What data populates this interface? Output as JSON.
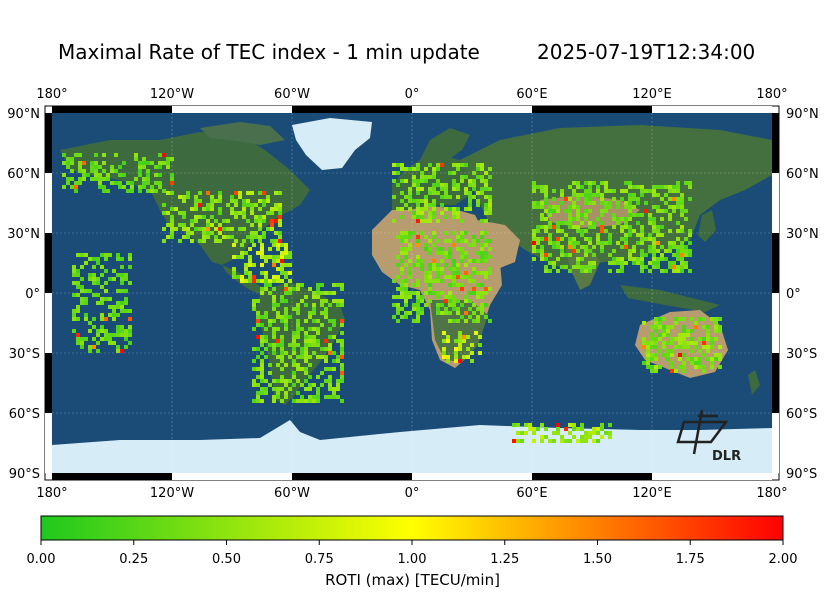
{
  "title": "Maximal Rate of TEC index - 1 min update",
  "timestamp": "2025-07-19T12:34:00",
  "logo_text": "DLR",
  "colors": {
    "ocean": "#1b4c78",
    "land": "#3d6a3f",
    "desert": "#b79c6f",
    "ice": "#d6ecf7"
  },
  "axes": {
    "lon_ticks_top": [
      "180°",
      "120°W",
      "60°W",
      "0°",
      "60°E",
      "120°E",
      "180°"
    ],
    "lon_ticks_bottom": [
      "180°",
      "120°W",
      "60°W",
      "0°",
      "60°E",
      "120°E",
      "180°"
    ],
    "lat_ticks_left": [
      "90°N",
      "60°N",
      "30°N",
      "0°",
      "30°S",
      "60°S",
      "90°S"
    ],
    "lat_ticks_right": [
      "90°N",
      "60°N",
      "30°N",
      "0°",
      "30°S",
      "60°S",
      "90°S"
    ]
  },
  "colorbar": {
    "label": "ROTI (max) [TECU/min]",
    "ticks": [
      "0.00",
      "0.25",
      "0.50",
      "0.75",
      "1.00",
      "1.25",
      "1.50",
      "1.75",
      "2.00"
    ],
    "range": [
      0,
      2
    ],
    "colors": [
      "#1ec81e",
      "#ffff00",
      "#ff0000"
    ]
  },
  "data_clusters": [
    {
      "region": "alaska-canada",
      "lon": [
        -175,
        -120
      ],
      "lat": [
        50,
        70
      ],
      "typ": 0.4
    },
    {
      "region": "north-america",
      "lon": [
        -125,
        -65
      ],
      "lat": [
        25,
        50
      ],
      "typ": 0.55
    },
    {
      "region": "central-america",
      "lon": [
        -90,
        -60
      ],
      "lat": [
        5,
        25
      ],
      "typ": 0.7
    },
    {
      "region": "south-america",
      "lon": [
        -80,
        -35
      ],
      "lat": [
        -55,
        5
      ],
      "typ": 0.45
    },
    {
      "region": "europe",
      "lon": [
        -10,
        40
      ],
      "lat": [
        35,
        65
      ],
      "typ": 0.5
    },
    {
      "region": "africa",
      "lon": [
        -10,
        40
      ],
      "lat": [
        -15,
        30
      ],
      "typ": 0.45
    },
    {
      "region": "southern-africa",
      "lon": [
        15,
        35
      ],
      "lat": [
        -35,
        -20
      ],
      "typ": 0.8
    },
    {
      "region": "asia",
      "lon": [
        60,
        140
      ],
      "lat": [
        10,
        55
      ],
      "typ": 0.45
    },
    {
      "region": "australia",
      "lon": [
        115,
        155
      ],
      "lat": [
        -40,
        -12
      ],
      "typ": 0.5
    },
    {
      "region": "pacific-islands",
      "lon": [
        -170,
        -140
      ],
      "lat": [
        -30,
        20
      ],
      "typ": 0.4
    },
    {
      "region": "antarctica-coast",
      "lon": [
        50,
        100
      ],
      "lat": [
        -75,
        -65
      ],
      "typ": 0.6
    }
  ]
}
